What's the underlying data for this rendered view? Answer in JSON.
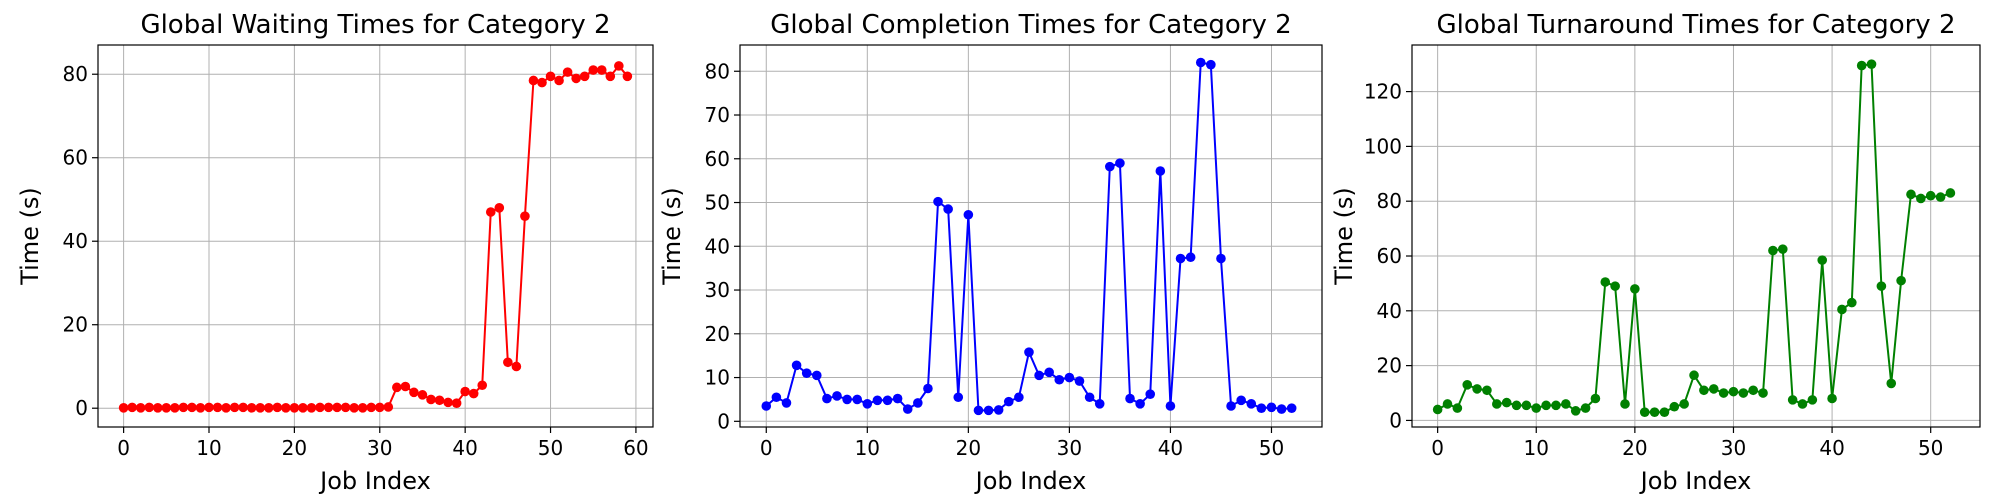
{
  "figure": {
    "background": "#ffffff"
  },
  "chart_data": [
    {
      "type": "line",
      "title": "Global Waiting Times for Category 2",
      "xlabel": "Job Index",
      "ylabel": "Time (s)",
      "color": "#ff0000",
      "marker": "circle",
      "grid": true,
      "xlim": [
        -3,
        62
      ],
      "ylim": [
        -4.5,
        87
      ],
      "xticks": [
        0,
        10,
        20,
        30,
        40,
        50,
        60
      ],
      "yticks": [
        0,
        20,
        40,
        60,
        80
      ],
      "x": [
        0,
        1,
        2,
        3,
        4,
        5,
        6,
        7,
        8,
        9,
        10,
        11,
        12,
        13,
        14,
        15,
        16,
        17,
        18,
        19,
        20,
        21,
        22,
        23,
        24,
        25,
        26,
        27,
        28,
        29,
        30,
        31,
        32,
        33,
        34,
        35,
        36,
        37,
        38,
        39,
        40,
        41,
        42,
        43,
        44,
        45,
        46,
        47,
        48,
        49,
        50,
        51,
        52,
        53,
        54,
        55,
        56,
        57,
        58,
        59
      ],
      "y": [
        0.1,
        0.2,
        0.1,
        0.2,
        0.1,
        0.1,
        0.1,
        0.2,
        0.2,
        0.1,
        0.2,
        0.2,
        0.1,
        0.2,
        0.2,
        0.1,
        0.1,
        0.1,
        0.2,
        0.1,
        0.1,
        0.1,
        0.1,
        0.2,
        0.2,
        0.2,
        0.2,
        0.1,
        0.1,
        0.2,
        0.2,
        0.3,
        5.0,
        5.2,
        3.8,
        3.2,
        2.1,
        1.9,
        1.4,
        1.2,
        4.0,
        3.5,
        5.5,
        47.0,
        48.0,
        11.0,
        10.0,
        46.0,
        78.5,
        78.0,
        79.5,
        78.5,
        80.5,
        79.0,
        79.5,
        81.0,
        81.0,
        79.5,
        82.0,
        79.5
      ]
    },
    {
      "type": "line",
      "title": "Global Completion Times for Category 2",
      "xlabel": "Job Index",
      "ylabel": "Time (s)",
      "color": "#0000ff",
      "marker": "circle",
      "grid": true,
      "xlim": [
        -2.6,
        55
      ],
      "ylim": [
        -1.3,
        86
      ],
      "xticks": [
        0,
        10,
        20,
        30,
        40,
        50
      ],
      "yticks": [
        0,
        10,
        20,
        30,
        40,
        50,
        60,
        70,
        80
      ],
      "x": [
        0,
        1,
        2,
        3,
        4,
        5,
        6,
        7,
        8,
        9,
        10,
        11,
        12,
        13,
        14,
        15,
        16,
        17,
        18,
        19,
        20,
        21,
        22,
        23,
        24,
        25,
        26,
        27,
        28,
        29,
        30,
        31,
        32,
        33,
        34,
        35,
        36,
        37,
        38,
        39,
        40,
        41,
        42,
        43,
        44,
        45,
        46,
        47,
        48,
        49,
        50,
        51,
        52
      ],
      "y": [
        3.5,
        5.5,
        4.2,
        12.8,
        11.0,
        10.5,
        5.2,
        5.8,
        5.0,
        5.0,
        4.0,
        4.8,
        4.8,
        5.2,
        2.8,
        4.2,
        7.5,
        50.2,
        48.5,
        5.5,
        47.2,
        2.5,
        2.5,
        2.6,
        4.5,
        5.5,
        15.8,
        10.5,
        11.2,
        9.5,
        10.0,
        9.2,
        5.5,
        4.0,
        58.2,
        59.0,
        5.2,
        4.0,
        6.2,
        57.2,
        3.5,
        37.2,
        37.5,
        82.0,
        81.5,
        37.2,
        3.5,
        4.8,
        4.0,
        3.0,
        3.2,
        2.8,
        3.0
      ]
    },
    {
      "type": "line",
      "title": "Global Turnaround Times for Category 2",
      "xlabel": "Job Index",
      "ylabel": "Time (s)",
      "color": "#008000",
      "marker": "circle",
      "grid": true,
      "xlim": [
        -2.6,
        55
      ],
      "ylim": [
        -2.4,
        137
      ],
      "xticks": [
        0,
        10,
        20,
        30,
        40,
        50
      ],
      "yticks": [
        0,
        20,
        40,
        60,
        80,
        100,
        120
      ],
      "x": [
        0,
        1,
        2,
        3,
        4,
        5,
        6,
        7,
        8,
        9,
        10,
        11,
        12,
        13,
        14,
        15,
        16,
        17,
        18,
        19,
        20,
        21,
        22,
        23,
        24,
        25,
        26,
        27,
        28,
        29,
        30,
        31,
        32,
        33,
        34,
        35,
        36,
        37,
        38,
        39,
        40,
        41,
        42,
        43,
        44,
        45,
        46,
        47,
        48,
        49,
        50,
        51,
        52
      ],
      "y": [
        4.0,
        6.0,
        4.5,
        13.0,
        11.5,
        11.0,
        6.0,
        6.5,
        5.5,
        5.5,
        4.5,
        5.5,
        5.5,
        6.0,
        3.5,
        4.5,
        8.0,
        50.5,
        49.0,
        6.0,
        48.0,
        3.0,
        3.0,
        3.0,
        5.0,
        6.0,
        16.5,
        11.0,
        11.5,
        10.0,
        10.5,
        10.0,
        11.0,
        10.0,
        62.0,
        62.5,
        7.5,
        6.0,
        7.5,
        58.5,
        8.0,
        40.5,
        43.0,
        129.5,
        130.0,
        49.0,
        13.5,
        51.0,
        82.5,
        81.0,
        82.0,
        81.5,
        83.0
      ]
    }
  ]
}
